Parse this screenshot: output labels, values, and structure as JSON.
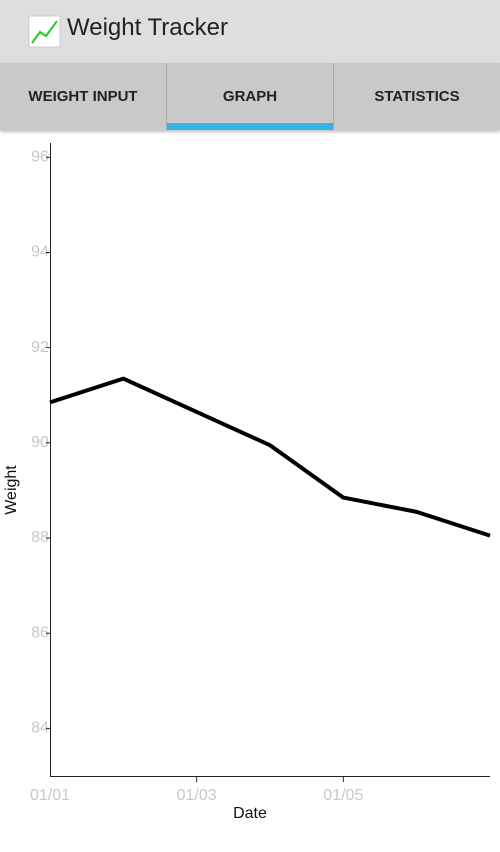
{
  "app_title": "Weight Tracker",
  "tabs": [
    "WEIGHT INPUT",
    "GRAPH",
    "STATISTICS"
  ],
  "chart_data": {
    "type": "line",
    "x_label": "Date",
    "y_label": "Weight",
    "categories": [
      "01/01",
      null,
      "01/03",
      null,
      "01/05",
      null,
      null
    ],
    "series": [
      {
        "name": "Weight",
        "color": "#000000",
        "values": [
          90.85,
          91.35,
          90.65,
          89.95,
          88.85,
          88.55,
          88.05
        ]
      }
    ],
    "ylim": [
      83,
      96.3
    ],
    "yticks": [
      84,
      86,
      88,
      90,
      92,
      94,
      96
    ],
    "grid": false
  }
}
